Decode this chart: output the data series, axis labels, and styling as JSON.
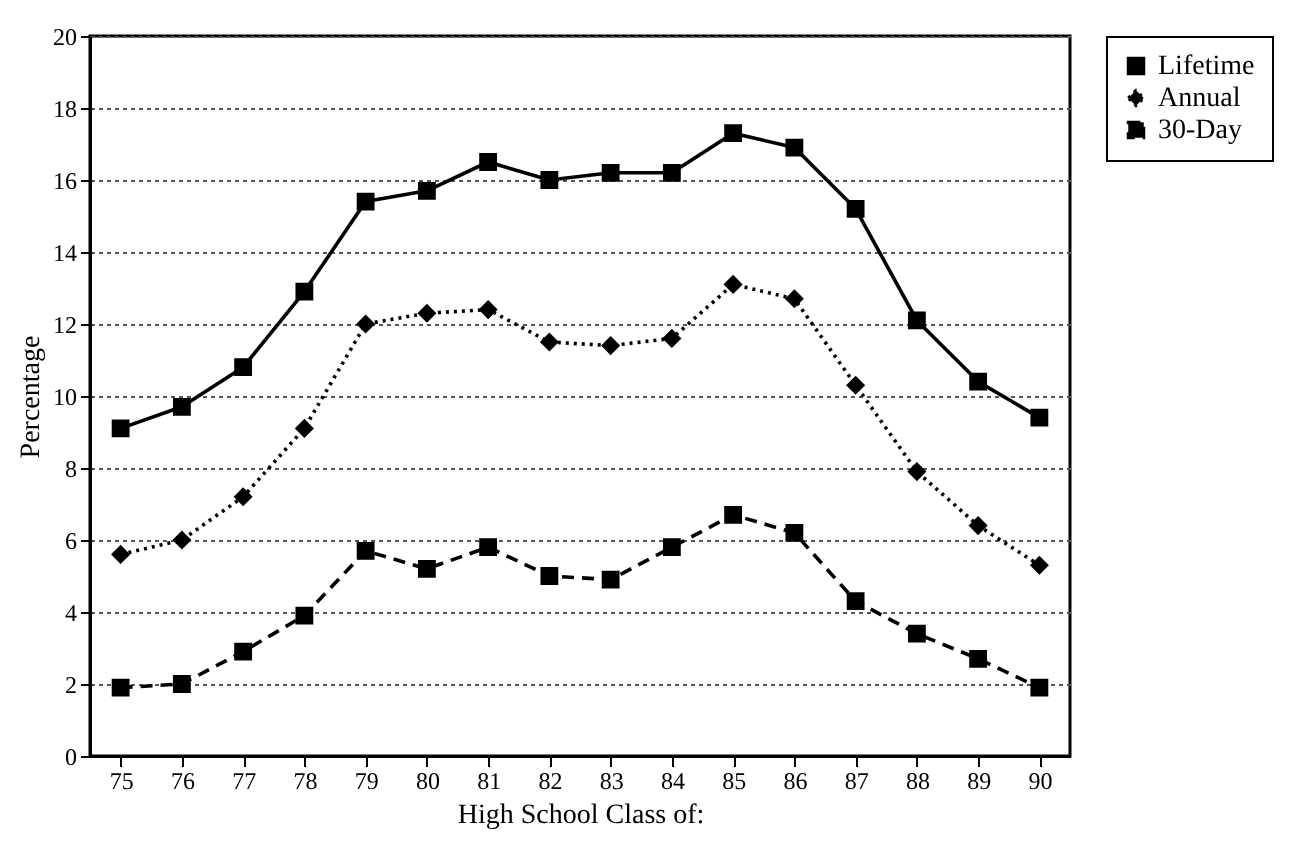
{
  "chart_data": {
    "type": "line",
    "xlabel": "High School Class of:",
    "ylabel": "Percentage",
    "categories": [
      "75",
      "76",
      "77",
      "78",
      "79",
      "80",
      "81",
      "82",
      "83",
      "84",
      "85",
      "86",
      "87",
      "88",
      "89",
      "90"
    ],
    "series": [
      {
        "name": "Lifetime",
        "color": "#000000",
        "marker": "square",
        "line_style": "solid",
        "values": [
          9.1,
          9.7,
          10.8,
          12.9,
          15.4,
          15.7,
          16.5,
          16.0,
          16.2,
          16.2,
          17.3,
          16.9,
          15.2,
          12.1,
          10.4,
          9.4
        ]
      },
      {
        "name": "Annual",
        "color": "#000000",
        "marker": "diamond",
        "line_style": "dotted",
        "values": [
          5.6,
          6.0,
          7.2,
          9.1,
          12.0,
          12.3,
          12.4,
          11.5,
          11.4,
          11.6,
          13.1,
          12.7,
          10.3,
          7.9,
          6.4,
          5.3
        ]
      },
      {
        "name": "30-Day",
        "color": "#000000",
        "marker": "square",
        "line_style": "dashed",
        "values": [
          1.9,
          2.0,
          2.9,
          3.9,
          5.7,
          5.2,
          5.8,
          5.0,
          4.9,
          5.8,
          6.7,
          6.2,
          4.3,
          3.4,
          2.7,
          1.9
        ]
      }
    ],
    "ylim": [
      0,
      20
    ],
    "yticks": [
      0,
      2,
      4,
      6,
      8,
      10,
      12,
      14,
      16,
      18,
      20
    ],
    "grid": "y",
    "legend": "top right"
  }
}
